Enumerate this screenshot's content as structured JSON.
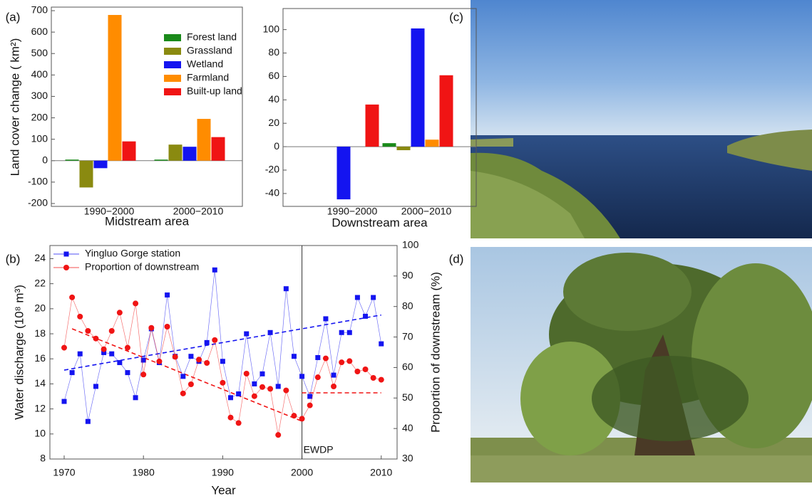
{
  "chart_data": [
    {
      "type": "bar",
      "label": "(a)",
      "ylabel": "Land cover change ( km²)",
      "xlabel": "Midstream area",
      "categories": [
        "1990−2000",
        "2000−2010"
      ],
      "series": [
        {
          "name": "Forest land",
          "color": "#1a8a1a",
          "values": [
            5,
            5
          ]
        },
        {
          "name": "Grassland",
          "color": "#8a8a10",
          "values": [
            -125,
            75
          ]
        },
        {
          "name": "Wetland",
          "color": "#1414f0",
          "values": [
            -35,
            65
          ]
        },
        {
          "name": "Farmland",
          "color": "#ff8c00",
          "values": [
            680,
            195
          ]
        },
        {
          "name": "Built-up land",
          "color": "#f01414",
          "values": [
            90,
            110
          ]
        }
      ],
      "ylim": [
        -200,
        700
      ],
      "yticks": [
        -200,
        -100,
        0,
        100,
        200,
        300,
        400,
        500,
        600,
        700
      ],
      "legend": "upper right"
    },
    {
      "type": "bar",
      "xlabel": "Downstream area",
      "categories": [
        "1990−2000",
        "2000−2010"
      ],
      "series": [
        {
          "color": "#1a8a1a",
          "values": [
            0,
            3
          ]
        },
        {
          "color": "#8a8a10",
          "values": [
            0,
            -3
          ]
        },
        {
          "color": "#1414f0",
          "values": [
            -45,
            101
          ]
        },
        {
          "color": "#ff8c00",
          "values": [
            0,
            6
          ]
        },
        {
          "color": "#f01414",
          "values": [
            36,
            61
          ]
        }
      ],
      "ylim": [
        -51,
        118
      ],
      "yticks": [
        -40,
        -20,
        0,
        20,
        40,
        60,
        80,
        100
      ]
    },
    {
      "type": "line",
      "label": "(b)",
      "xlabel": "Year",
      "ylabel": "Water discharge (10⁸ m³)",
      "y2label": "Proportion of downstream (%)",
      "x": [
        1970,
        1971,
        1972,
        1973,
        1974,
        1975,
        1976,
        1977,
        1978,
        1979,
        1980,
        1981,
        1982,
        1983,
        1984,
        1985,
        1986,
        1987,
        1988,
        1989,
        1990,
        1991,
        1992,
        1993,
        1994,
        1995,
        1996,
        1997,
        1998,
        1999,
        2000,
        2001,
        2002,
        2003,
        2004,
        2005,
        2006,
        2007,
        2008,
        2009,
        2010
      ],
      "xlim": [
        1968.2,
        2012
      ],
      "xticks": [
        1970,
        1980,
        1990,
        2000,
        2010
      ],
      "ylim": [
        8,
        25.05
      ],
      "yticks": [
        8,
        10,
        12,
        14,
        16,
        18,
        20,
        22,
        24
      ],
      "y2lim": [
        30,
        100
      ],
      "y2ticks": [
        30,
        40,
        50,
        60,
        70,
        80,
        90,
        100
      ],
      "series": [
        {
          "name": "Yingluo Gorge station",
          "color": "#1414f0",
          "marker": "square",
          "values": [
            12.6,
            14.9,
            16.4,
            11.0,
            13.8,
            16.5,
            16.4,
            15.7,
            14.9,
            12.9,
            15.9,
            18.4,
            15.7,
            21.1,
            16.2,
            14.6,
            16.2,
            15.8,
            17.3,
            23.1,
            15.8,
            12.9,
            13.2,
            18.0,
            14.0,
            14.8,
            18.1,
            13.8,
            21.6,
            16.2,
            14.6,
            13.0,
            16.1,
            19.2,
            14.7,
            18.1,
            18.1,
            20.9,
            19.4,
            20.9,
            17.2
          ]
        },
        {
          "name": "Proportion of downstream",
          "color": "#f01414",
          "marker": "circle",
          "axis": "y2",
          "values": [
            66.5,
            83,
            76.7,
            72,
            69.5,
            66,
            72,
            78,
            66.5,
            81,
            57.7,
            73,
            62,
            73.4,
            63.5,
            51.5,
            54.5,
            62.6,
            61.5,
            69,
            55,
            43.6,
            41.8,
            58,
            50.6,
            53.6,
            53,
            37.9,
            52.5,
            44.2,
            43.2,
            47.6,
            56.8,
            63,
            53.8,
            61.7,
            62.1,
            58.7,
            59.4,
            56.6,
            56
          ]
        }
      ],
      "trends": [
        {
          "color": "#1414f0",
          "x": [
            1970,
            2010
          ],
          "values": [
            15.1,
            19.5
          ]
        },
        {
          "color": "#f01414",
          "axis": "y2",
          "x": [
            1971,
            2000
          ],
          "values": [
            72.7,
            42.4
          ]
        },
        {
          "color": "#f01414",
          "axis": "y2",
          "x": [
            2000,
            2010
          ],
          "values": [
            51.7,
            51.7
          ]
        }
      ],
      "vline": 2000,
      "vline_label": "EWDP",
      "legend": "upper left"
    }
  ],
  "images": [
    {
      "label": "(c)"
    },
    {
      "label": "(d)"
    }
  ]
}
